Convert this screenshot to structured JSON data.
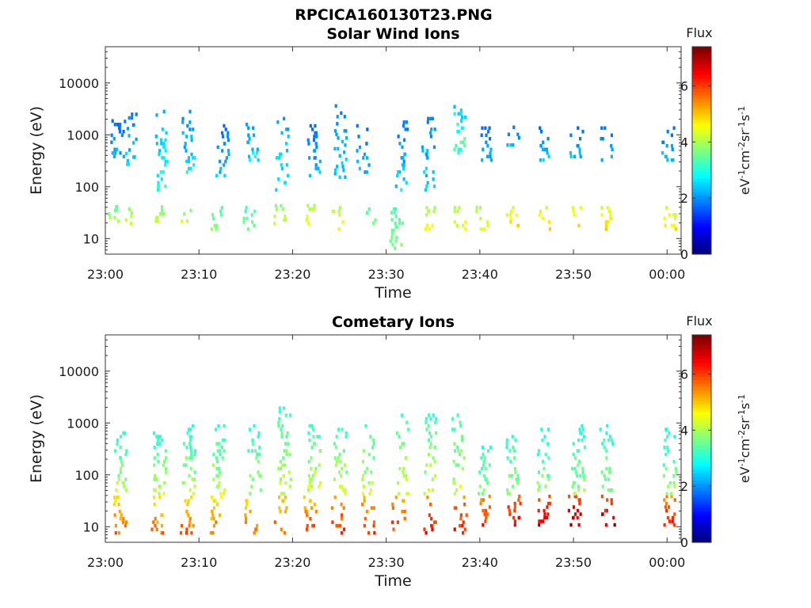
{
  "title": "RPCICA160130T23.PNG",
  "chart_data": [
    {
      "type": "heatmap",
      "title": "Solar Wind Ions",
      "xlabel": "Time",
      "ylabel": "Energy (eV)",
      "x_ticks": [
        "23:00",
        "23:10",
        "23:20",
        "23:30",
        "23:40",
        "23:50",
        "00:00"
      ],
      "y_ticks": [
        "10",
        "100",
        "1000",
        "10000"
      ],
      "y_scale": "log",
      "ylim": [
        5,
        50000
      ],
      "colorbar": {
        "title": "Flux",
        "label_parts": [
          "eV",
          "-1",
          "cm",
          "-2",
          "sr",
          "-1",
          "s",
          "-1"
        ],
        "ticks": [
          "0",
          "2",
          "4",
          "6"
        ],
        "range": [
          0,
          7.4
        ],
        "colormap": "jet"
      },
      "clusters": [
        {
          "t": 0.6,
          "e": [
            20,
            45
          ],
          "v": [
            3.2,
            4.2
          ]
        },
        {
          "t": 1.2,
          "e": [
            300,
            2000
          ],
          "v": [
            1.2,
            2.6
          ]
        },
        {
          "t": 2.2,
          "e": [
            18,
            40
          ],
          "v": [
            3.4,
            4.6
          ]
        },
        {
          "t": 2.6,
          "e": [
            250,
            2500
          ],
          "v": [
            1.4,
            2.8
          ]
        },
        {
          "t": 5.6,
          "e": [
            20,
            45
          ],
          "v": [
            3.2,
            4.4
          ]
        },
        {
          "t": 5.9,
          "e": [
            80,
            3500
          ],
          "v": [
            1.6,
            3.4
          ]
        },
        {
          "t": 8.4,
          "e": [
            20,
            40
          ],
          "v": [
            3.3,
            4.5
          ]
        },
        {
          "t": 8.8,
          "e": [
            150,
            3000
          ],
          "v": [
            1.4,
            3.0
          ]
        },
        {
          "t": 11.8,
          "e": [
            14,
            45
          ],
          "v": [
            3.0,
            4.0
          ]
        },
        {
          "t": 12.4,
          "e": [
            150,
            1500
          ],
          "v": [
            1.3,
            2.6
          ]
        },
        {
          "t": 15.2,
          "e": [
            14,
            40
          ],
          "v": [
            3.0,
            3.8
          ]
        },
        {
          "t": 15.6,
          "e": [
            300,
            2000
          ],
          "v": [
            1.4,
            3.0
          ]
        },
        {
          "t": 18.6,
          "e": [
            18,
            45
          ],
          "v": [
            3.4,
            4.6
          ]
        },
        {
          "t": 18.8,
          "e": [
            80,
            3000
          ],
          "v": [
            1.4,
            3.2
          ]
        },
        {
          "t": 21.8,
          "e": [
            18,
            45
          ],
          "v": [
            3.6,
            4.8
          ]
        },
        {
          "t": 22.2,
          "e": [
            150,
            1500
          ],
          "v": [
            1.3,
            2.6
          ]
        },
        {
          "t": 24.7,
          "e": [
            14,
            45
          ],
          "v": [
            3.6,
            4.8
          ]
        },
        {
          "t": 25.0,
          "e": [
            120,
            4000
          ],
          "v": [
            1.4,
            2.8
          ]
        },
        {
          "t": 28.1,
          "e": [
            18,
            40
          ],
          "v": [
            3.0,
            3.8
          ]
        },
        {
          "t": 27.4,
          "e": [
            150,
            1500
          ],
          "v": [
            1.3,
            2.6
          ]
        },
        {
          "t": 31.0,
          "e": [
            6,
            40
          ],
          "v": [
            3.0,
            4.0
          ]
        },
        {
          "t": 31.5,
          "e": [
            80,
            2000
          ],
          "v": [
            1.3,
            2.8
          ]
        },
        {
          "t": 34.4,
          "e": [
            14,
            45
          ],
          "v": [
            3.6,
            4.8
          ]
        },
        {
          "t": 34.4,
          "e": [
            80,
            2500
          ],
          "v": [
            1.3,
            3.0
          ]
        },
        {
          "t": 37.7,
          "e": [
            14,
            45
          ],
          "v": [
            3.6,
            4.8
          ]
        },
        {
          "t": 37.8,
          "e": [
            300,
            3500
          ],
          "v": [
            1.6,
            4.2
          ]
        },
        {
          "t": 40.2,
          "e": [
            14,
            45
          ],
          "v": [
            3.6,
            4.8
          ]
        },
        {
          "t": 40.5,
          "e": [
            300,
            1500
          ],
          "v": [
            1.3,
            2.6
          ]
        },
        {
          "t": 43.4,
          "e": [
            14,
            40
          ],
          "v": [
            3.8,
            5.2
          ]
        },
        {
          "t": 43.4,
          "e": [
            500,
            1500
          ],
          "v": [
            1.3,
            2.6
          ]
        },
        {
          "t": 46.8,
          "e": [
            14,
            45
          ],
          "v": [
            3.8,
            5.2
          ]
        },
        {
          "t": 46.8,
          "e": [
            300,
            1500
          ],
          "v": [
            1.3,
            2.6
          ]
        },
        {
          "t": 50.0,
          "e": [
            14,
            45
          ],
          "v": [
            3.8,
            5.4
          ]
        },
        {
          "t": 50.2,
          "e": [
            300,
            1500
          ],
          "v": [
            1.3,
            2.6
          ]
        },
        {
          "t": 53.5,
          "e": [
            14,
            45
          ],
          "v": [
            3.8,
            5.2
          ]
        },
        {
          "t": 53.4,
          "e": [
            300,
            1500
          ],
          "v": [
            1.3,
            2.6
          ]
        },
        {
          "t": 60.2,
          "e": [
            14,
            45
          ],
          "v": [
            3.8,
            5.0
          ]
        },
        {
          "t": 60.0,
          "e": [
            300,
            1500
          ],
          "v": [
            1.3,
            2.6
          ]
        }
      ]
    },
    {
      "type": "heatmap",
      "title": "Cometary Ions",
      "xlabel": "Time",
      "ylabel": "Energy (eV)",
      "x_ticks": [
        "23:00",
        "23:10",
        "23:20",
        "23:30",
        "23:40",
        "23:50",
        "00:00"
      ],
      "y_ticks": [
        "10",
        "100",
        "1000",
        "10000"
      ],
      "y_scale": "log",
      "ylim": [
        5,
        50000
      ],
      "colorbar": {
        "title": "Flux",
        "label_parts": [
          "eV",
          "-1",
          "cm",
          "-2",
          "sr",
          "-1",
          "s",
          "-1"
        ],
        "ticks": [
          "0",
          "2",
          "4",
          "6"
        ],
        "range": [
          0,
          7.4
        ],
        "colormap": "jet"
      },
      "clusters": [
        {
          "t": 1.5,
          "e": [
            7,
            40
          ],
          "v": [
            4.2,
            6.0
          ]
        },
        {
          "t": 1.5,
          "e": [
            40,
            700
          ],
          "v": [
            2.4,
            4.4
          ]
        },
        {
          "t": 5.5,
          "e": [
            7,
            40
          ],
          "v": [
            4.2,
            6.0
          ]
        },
        {
          "t": 5.7,
          "e": [
            40,
            700
          ],
          "v": [
            2.4,
            4.4
          ]
        },
        {
          "t": 8.6,
          "e": [
            7,
            40
          ],
          "v": [
            4.4,
            6.2
          ]
        },
        {
          "t": 8.8,
          "e": [
            40,
            1000
          ],
          "v": [
            2.4,
            4.4
          ]
        },
        {
          "t": 11.8,
          "e": [
            7,
            40
          ],
          "v": [
            4.2,
            6.0
          ]
        },
        {
          "t": 12.0,
          "e": [
            40,
            1000
          ],
          "v": [
            2.4,
            4.6
          ]
        },
        {
          "t": 15.5,
          "e": [
            7,
            40
          ],
          "v": [
            4.2,
            6.0
          ]
        },
        {
          "t": 15.8,
          "e": [
            40,
            1000
          ],
          "v": [
            2.4,
            4.4
          ]
        },
        {
          "t": 18.6,
          "e": [
            7,
            40
          ],
          "v": [
            4.4,
            6.2
          ]
        },
        {
          "t": 19.0,
          "e": [
            40,
            2000
          ],
          "v": [
            2.6,
            4.6
          ]
        },
        {
          "t": 21.8,
          "e": [
            7,
            40
          ],
          "v": [
            4.4,
            6.4
          ]
        },
        {
          "t": 22.2,
          "e": [
            40,
            1000
          ],
          "v": [
            2.6,
            4.6
          ]
        },
        {
          "t": 24.7,
          "e": [
            7,
            40
          ],
          "v": [
            4.6,
            6.6
          ]
        },
        {
          "t": 25.0,
          "e": [
            40,
            1000
          ],
          "v": [
            2.6,
            4.6
          ]
        },
        {
          "t": 28.0,
          "e": [
            7,
            40
          ],
          "v": [
            4.6,
            6.4
          ]
        },
        {
          "t": 28.0,
          "e": [
            40,
            1000
          ],
          "v": [
            2.6,
            4.6
          ]
        },
        {
          "t": 31.2,
          "e": [
            7,
            40
          ],
          "v": [
            4.6,
            6.6
          ]
        },
        {
          "t": 31.6,
          "e": [
            40,
            1500
          ],
          "v": [
            2.6,
            4.6
          ]
        },
        {
          "t": 34.6,
          "e": [
            7,
            40
          ],
          "v": [
            4.8,
            6.8
          ]
        },
        {
          "t": 34.6,
          "e": [
            40,
            1500
          ],
          "v": [
            2.6,
            4.6
          ]
        },
        {
          "t": 37.8,
          "e": [
            7,
            40
          ],
          "v": [
            4.8,
            6.8
          ]
        },
        {
          "t": 37.6,
          "e": [
            40,
            1500
          ],
          "v": [
            2.6,
            4.6
          ]
        },
        {
          "t": 40.6,
          "e": [
            10,
            40
          ],
          "v": [
            4.8,
            6.6
          ]
        },
        {
          "t": 40.4,
          "e": [
            40,
            400
          ],
          "v": [
            2.4,
            4.2
          ]
        },
        {
          "t": 43.6,
          "e": [
            10,
            40
          ],
          "v": [
            5.0,
            7.0
          ]
        },
        {
          "t": 43.4,
          "e": [
            40,
            800
          ],
          "v": [
            2.4,
            4.2
          ]
        },
        {
          "t": 46.8,
          "e": [
            10,
            40
          ],
          "v": [
            5.2,
            7.2
          ]
        },
        {
          "t": 46.6,
          "e": [
            40,
            800
          ],
          "v": [
            2.4,
            4.2
          ]
        },
        {
          "t": 50.0,
          "e": [
            10,
            40
          ],
          "v": [
            5.4,
            7.4
          ]
        },
        {
          "t": 50.4,
          "e": [
            40,
            900
          ],
          "v": [
            2.4,
            4.2
          ]
        },
        {
          "t": 53.6,
          "e": [
            10,
            40
          ],
          "v": [
            5.2,
            7.4
          ]
        },
        {
          "t": 53.4,
          "e": [
            40,
            1100
          ],
          "v": [
            2.4,
            4.2
          ]
        },
        {
          "t": 60.2,
          "e": [
            10,
            40
          ],
          "v": [
            4.8,
            6.8
          ]
        },
        {
          "t": 60.2,
          "e": [
            40,
            800
          ],
          "v": [
            2.4,
            4.2
          ]
        }
      ]
    }
  ]
}
